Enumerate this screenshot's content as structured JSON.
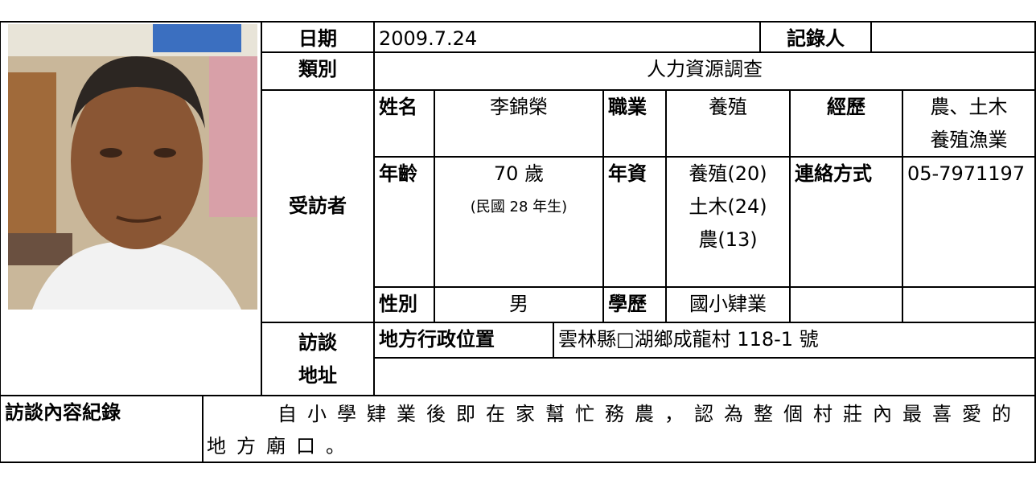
{
  "record": {
    "date_label": "日期",
    "date": "2009.7.24",
    "recorder_label": "記錄人"
  },
  "category_label": "類別",
  "category": "人力資源調查",
  "interviewee": {
    "label": "受訪者",
    "name_label": "姓名",
    "name": "李錦榮",
    "occupation_label": "職業",
    "occupation": "養殖",
    "experience_label": "經歷",
    "experience": [
      "農、土木",
      "養殖漁業"
    ],
    "age_label": "年齡",
    "age": [
      "70 歲",
      "(民國 28 年生)"
    ],
    "seniority_label": "年資",
    "seniority": [
      "養殖(20)",
      "土木(24)",
      "農(13)"
    ],
    "contact_label": "連絡方式",
    "contact": "05-7971197",
    "gender_label": "性別",
    "gender": "男",
    "education_label": "學歷",
    "education": "國小肄業"
  },
  "address": {
    "label": [
      "訪談",
      "地址"
    ],
    "admin_label": "地方行政位置",
    "admin": "雲林縣□湖鄉成龍村 118-1 號"
  },
  "content": {
    "label": "訪談內容紀錄",
    "text": "自小學肄業後即在家幫忙務農，認為整個村莊內最喜愛的地方廟口。"
  }
}
